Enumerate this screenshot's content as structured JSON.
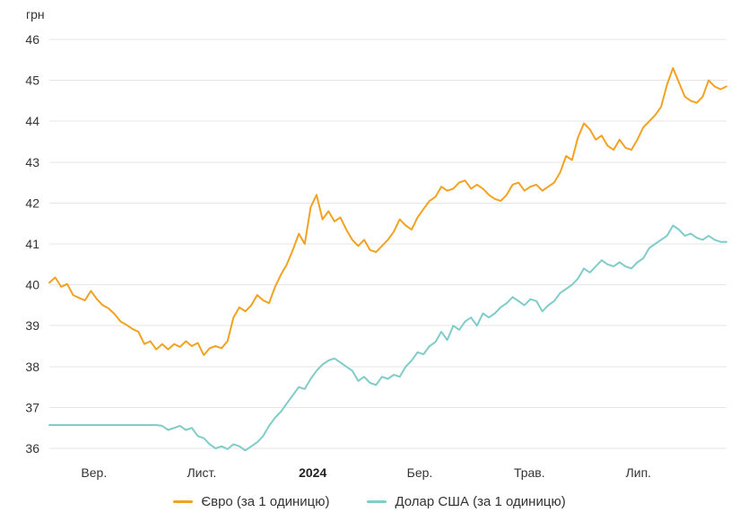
{
  "chart_data": {
    "type": "line",
    "title": "",
    "y_unit_label": "грн",
    "ylim": [
      36,
      46
    ],
    "y_ticks": [
      36,
      37,
      38,
      39,
      40,
      41,
      42,
      43,
      44,
      45,
      46
    ],
    "x_ticks": [
      {
        "label": "Вер.",
        "pos": 0.066,
        "bold": false
      },
      {
        "label": "Лист.",
        "pos": 0.225,
        "bold": false
      },
      {
        "label": "2024",
        "pos": 0.389,
        "bold": true
      },
      {
        "label": "Бер.",
        "pos": 0.547,
        "bold": false
      },
      {
        "label": "Трав.",
        "pos": 0.709,
        "bold": false
      },
      {
        "label": "Лип.",
        "pos": 0.87,
        "bold": false
      }
    ],
    "grid": "horizontal",
    "grid_color": "#e5e5e5",
    "legend_position": "bottom",
    "series": [
      {
        "name": "Євро (за 1 одиницю)",
        "color": "#f2a220",
        "values": [
          40.05,
          40.18,
          39.95,
          40.02,
          39.75,
          39.68,
          39.62,
          39.85,
          39.65,
          39.5,
          39.42,
          39.28,
          39.1,
          39.02,
          38.92,
          38.85,
          38.55,
          38.62,
          38.42,
          38.55,
          38.42,
          38.55,
          38.48,
          38.62,
          38.5,
          38.58,
          38.28,
          38.45,
          38.5,
          38.45,
          38.62,
          39.2,
          39.45,
          39.35,
          39.5,
          39.75,
          39.62,
          39.55,
          39.95,
          40.25,
          40.5,
          40.85,
          41.25,
          41.0,
          41.9,
          42.2,
          41.6,
          41.8,
          41.55,
          41.65,
          41.35,
          41.1,
          40.95,
          41.1,
          40.85,
          40.8,
          40.95,
          41.1,
          41.3,
          41.6,
          41.45,
          41.35,
          41.65,
          41.85,
          42.05,
          42.15,
          42.4,
          42.3,
          42.35,
          42.5,
          42.55,
          42.35,
          42.45,
          42.35,
          42.2,
          42.1,
          42.05,
          42.2,
          42.45,
          42.5,
          42.3,
          42.4,
          42.45,
          42.3,
          42.4,
          42.5,
          42.75,
          43.15,
          43.05,
          43.6,
          43.95,
          43.8,
          43.55,
          43.65,
          43.4,
          43.3,
          43.55,
          43.35,
          43.3,
          43.55,
          43.85,
          44.0,
          44.15,
          44.35,
          44.9,
          45.3,
          44.95,
          44.6,
          44.5,
          44.45,
          44.6,
          45.0,
          44.85,
          44.78,
          44.85
        ]
      },
      {
        "name": "Долар США (за 1 одиницю)",
        "color": "#7fccc8",
        "values": [
          36.57,
          36.57,
          36.57,
          36.57,
          36.57,
          36.57,
          36.57,
          36.57,
          36.57,
          36.57,
          36.57,
          36.57,
          36.57,
          36.57,
          36.57,
          36.57,
          36.57,
          36.57,
          36.57,
          36.55,
          36.45,
          36.5,
          36.55,
          36.45,
          36.5,
          36.3,
          36.25,
          36.1,
          36.0,
          36.05,
          35.98,
          36.1,
          36.05,
          35.95,
          36.05,
          36.15,
          36.3,
          36.55,
          36.75,
          36.9,
          37.1,
          37.3,
          37.5,
          37.45,
          37.7,
          37.9,
          38.05,
          38.15,
          38.2,
          38.1,
          38.0,
          37.9,
          37.65,
          37.75,
          37.6,
          37.55,
          37.75,
          37.7,
          37.8,
          37.75,
          38.0,
          38.15,
          38.35,
          38.3,
          38.5,
          38.6,
          38.85,
          38.65,
          39.0,
          38.9,
          39.1,
          39.2,
          39.0,
          39.3,
          39.2,
          39.3,
          39.45,
          39.55,
          39.7,
          39.6,
          39.5,
          39.65,
          39.6,
          39.35,
          39.5,
          39.6,
          39.8,
          39.9,
          40.0,
          40.15,
          40.4,
          40.3,
          40.45,
          40.6,
          40.5,
          40.45,
          40.55,
          40.45,
          40.4,
          40.55,
          40.65,
          40.9,
          41.0,
          41.1,
          41.2,
          41.45,
          41.35,
          41.2,
          41.25,
          41.15,
          41.1,
          41.2,
          41.1,
          41.05,
          41.05
        ]
      }
    ]
  }
}
